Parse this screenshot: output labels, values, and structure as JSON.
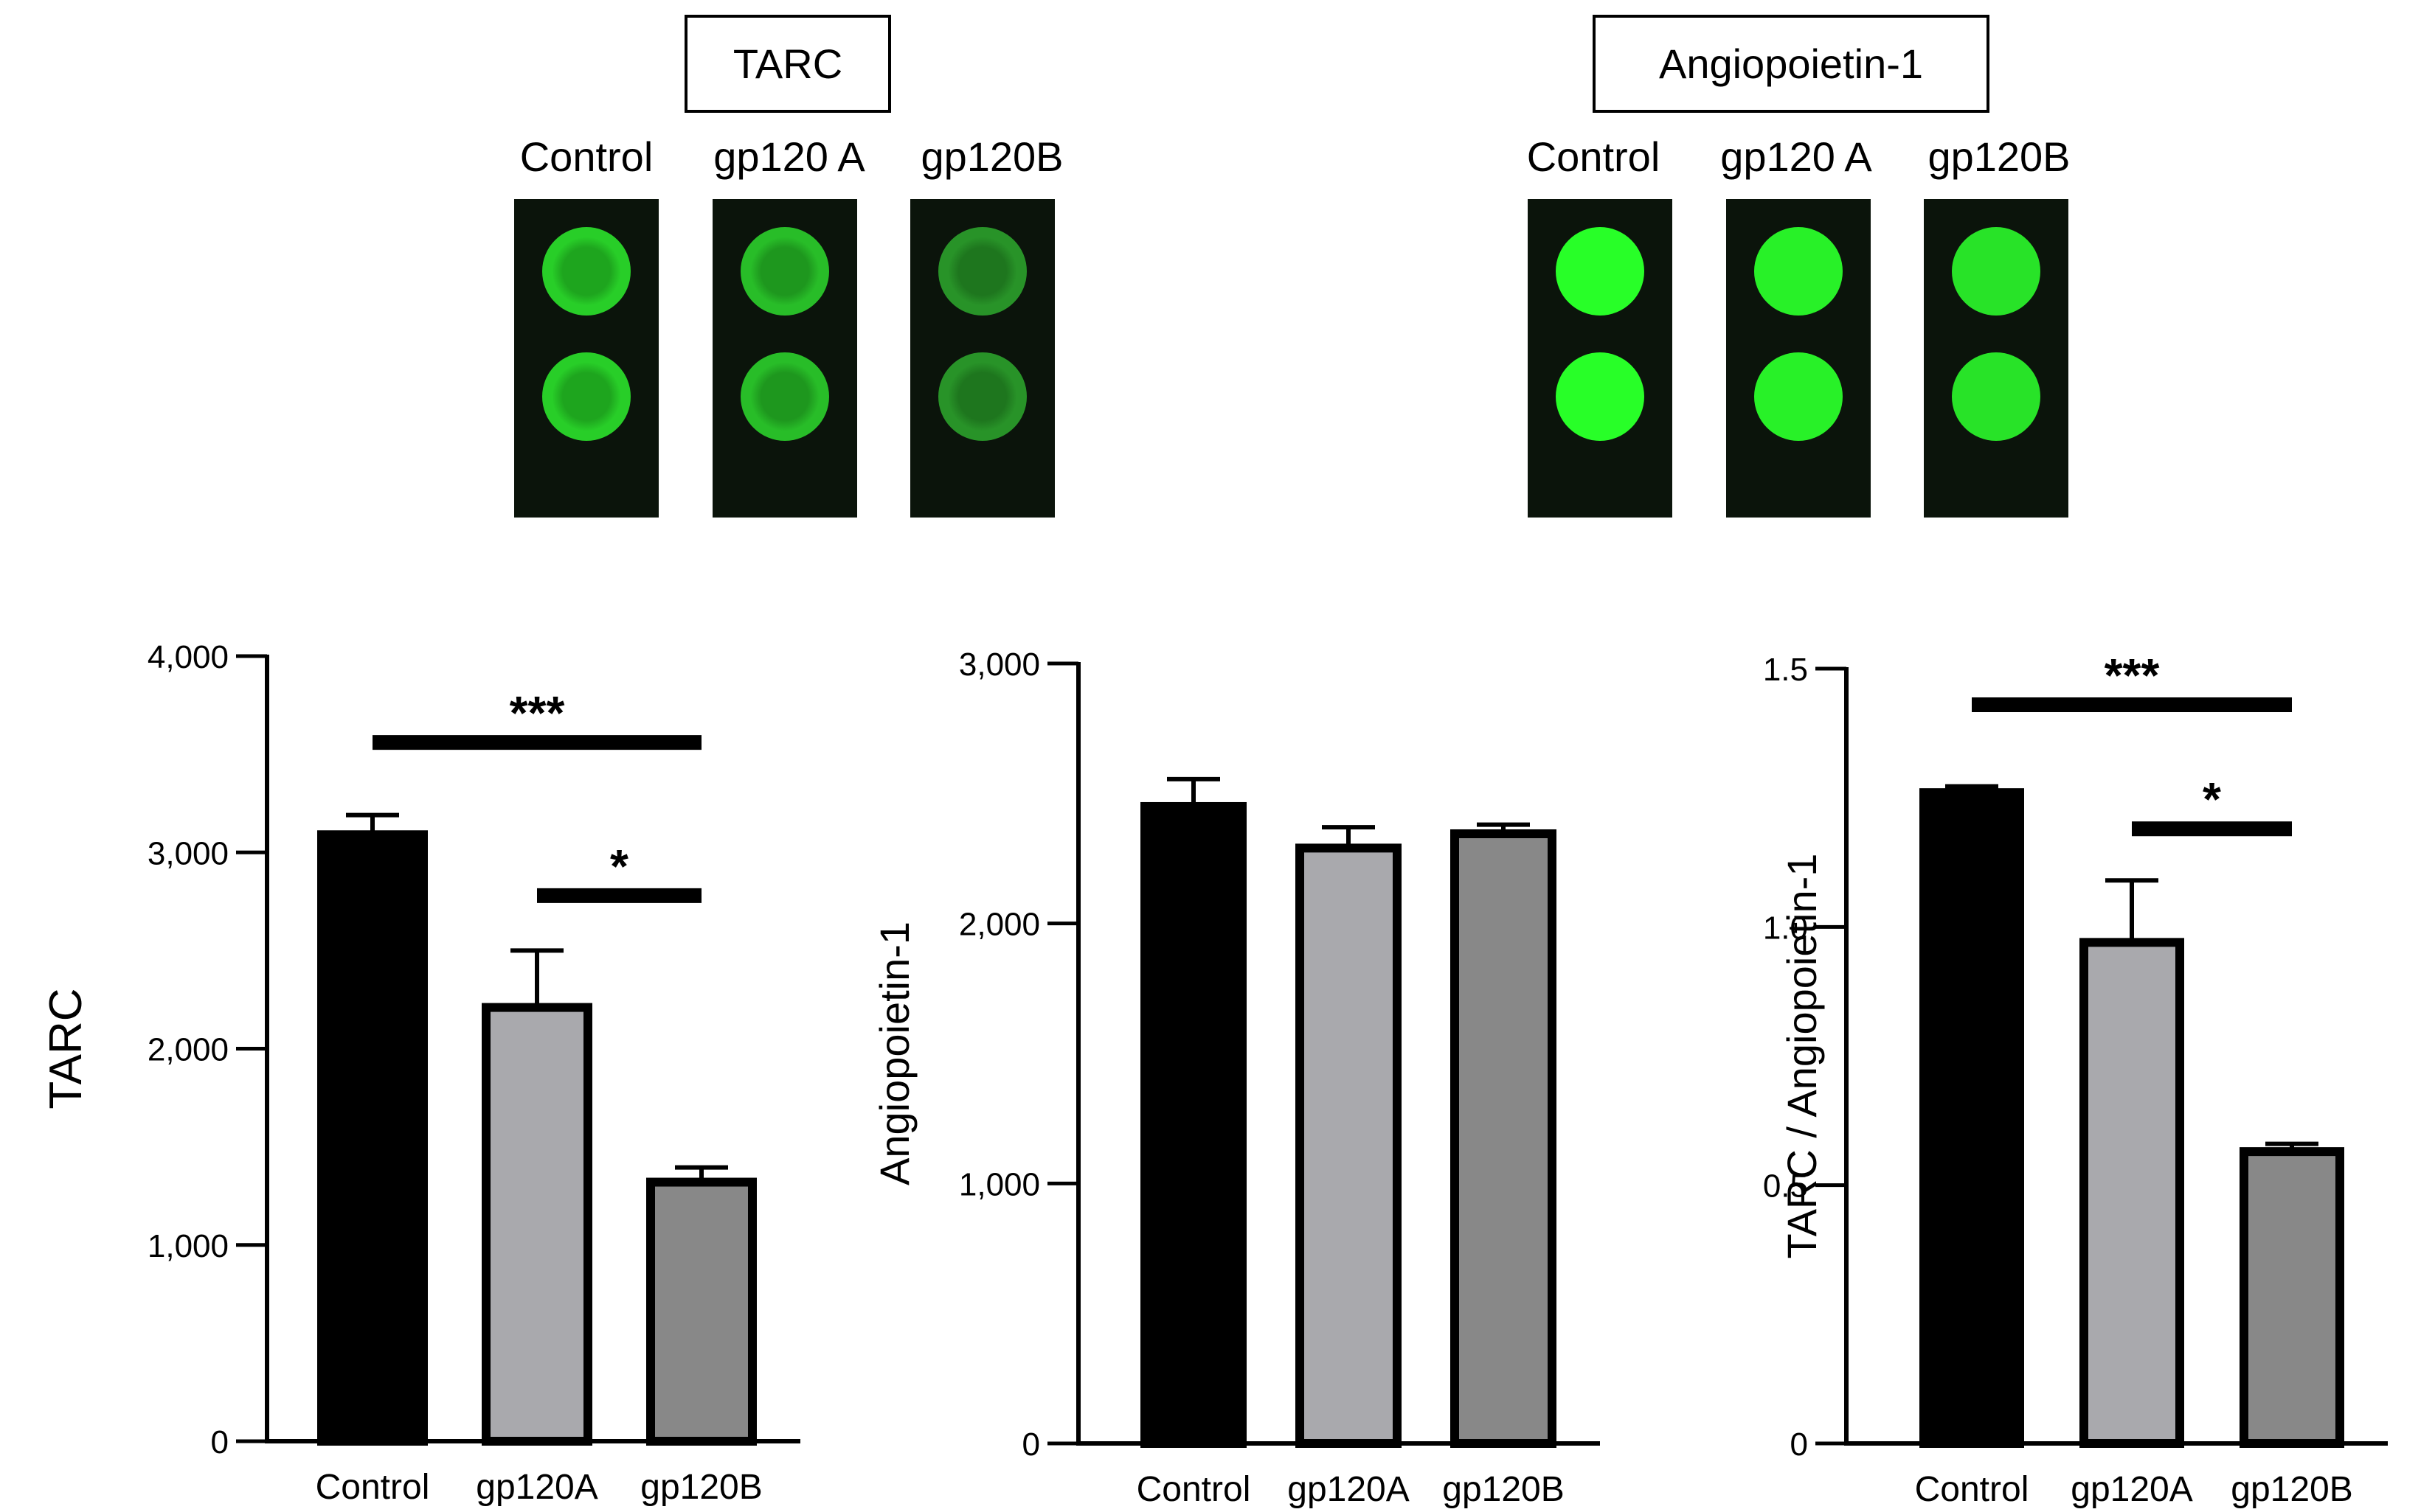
{
  "figure": {
    "blot_groups": [
      {
        "title": "TARC",
        "lanes": [
          {
            "label": "Control",
            "intensity": 0.72,
            "ring": true
          },
          {
            "label": "gp120 A",
            "intensity": 0.62,
            "ring": true
          },
          {
            "label": "gp120B",
            "intensity": 0.38,
            "ring": true
          }
        ]
      },
      {
        "title": "Angiopoietin-1",
        "lanes": [
          {
            "label": "Control",
            "intensity": 1.0,
            "ring": false
          },
          {
            "label": "gp120 A",
            "intensity": 0.92,
            "ring": false
          },
          {
            "label": "gp120B",
            "intensity": 0.84,
            "ring": false
          }
        ]
      }
    ]
  },
  "chart_data": [
    {
      "type": "bar",
      "ylabel": "TARC",
      "categories": [
        "Control",
        "gp120A",
        "gp120B"
      ],
      "values": [
        3090,
        2210,
        1320
      ],
      "errors": [
        100,
        290,
        75
      ],
      "colors": [
        "#000000",
        "#a9a9ad",
        "#888888"
      ],
      "ylim": [
        0,
        4000
      ],
      "yticks": [
        {
          "value": 0,
          "label": "0"
        },
        {
          "value": 1000,
          "label": "1,000"
        },
        {
          "value": 2000,
          "label": "2,000"
        },
        {
          "value": 3000,
          "label": "3,000"
        },
        {
          "value": 4000,
          "label": "4,000"
        }
      ],
      "significance": [
        {
          "from": 0,
          "to": 2,
          "label": "***",
          "y": 3560
        },
        {
          "from": 1,
          "to": 2,
          "label": "*",
          "y": 2780
        }
      ]
    },
    {
      "type": "bar",
      "ylabel": "Angiopoietin-1",
      "categories": [
        "Control",
        "gp120A",
        "gp120B"
      ],
      "values": [
        2450,
        2290,
        2345
      ],
      "errors": [
        105,
        80,
        35
      ],
      "colors": [
        "#000000",
        "#a9a9ad",
        "#888888"
      ],
      "ylim": [
        0,
        3000
      ],
      "yticks": [
        {
          "value": 0,
          "label": "0"
        },
        {
          "value": 1000,
          "label": "1,000"
        },
        {
          "value": 2000,
          "label": "2,000"
        },
        {
          "value": 3000,
          "label": "3,000"
        }
      ],
      "significance": []
    },
    {
      "type": "bar",
      "ylabel": "TARC / Angiopoietin-1",
      "categories": [
        "Control",
        "gp120A",
        "gp120B"
      ],
      "values": [
        1.26,
        0.97,
        0.565
      ],
      "errors": [
        0.012,
        0.12,
        0.015
      ],
      "colors": [
        "#000000",
        "#a9a9ad",
        "#888888"
      ],
      "ylim": [
        0,
        1.5
      ],
      "yticks": [
        {
          "value": 0,
          "label": "0"
        },
        {
          "value": 0.5,
          "label": "0.5"
        },
        {
          "value": 1.0,
          "label": "1.0"
        },
        {
          "value": 1.5,
          "label": "1.5"
        }
      ],
      "significance": [
        {
          "from": 0,
          "to": 2,
          "label": "***",
          "y": 1.43
        },
        {
          "from": 1,
          "to": 2,
          "label": "*",
          "y": 1.19
        }
      ]
    }
  ]
}
